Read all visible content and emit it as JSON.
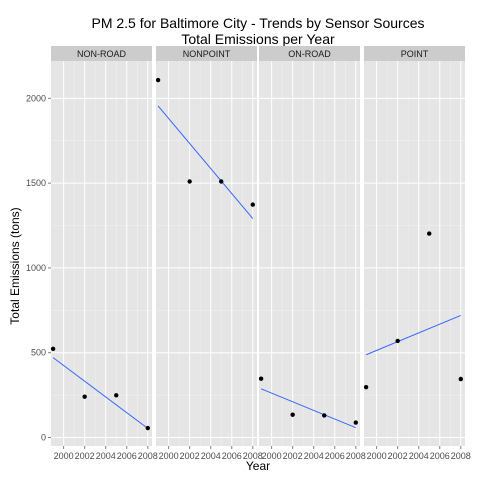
{
  "chart_data": {
    "type": "scatter",
    "title_lines": [
      "PM 2.5 for Baltimore City - Trends by Sensor Sources",
      "Total Emissions per Year"
    ],
    "xlabel": "Year",
    "ylabel": "Total Emissions (tons)",
    "x_ticks": [
      "2000",
      "2002",
      "2004",
      "2006",
      "2008"
    ],
    "y_ticks": [
      "0",
      "500",
      "1000",
      "1500",
      "2000"
    ],
    "xlim": [
      1998.8,
      2008.4
    ],
    "ylim": [
      -50,
      2220
    ],
    "grid": true,
    "trend_line_color": "#3366ff",
    "point_color": "#000000",
    "panel_background": "#e5e5e5",
    "strip_background": "#cccccc",
    "panels": [
      {
        "name": "NON-ROAD",
        "x": [
          1999,
          2002,
          2005,
          2008
        ],
        "y": [
          522.94,
          240.85,
          248.93,
          55.82
        ],
        "trend": {
          "x": [
            1999,
            2008
          ],
          "y": [
            471,
            54
          ]
        }
      },
      {
        "name": "NONPOINT",
        "x": [
          1999,
          2002,
          2005,
          2008
        ],
        "y": [
          2107.63,
          1509.5,
          1509.5,
          1373.21
        ],
        "trend": {
          "x": [
            1999,
            2008
          ],
          "y": [
            1955,
            1291
          ]
        }
      },
      {
        "name": "ON-ROAD",
        "x": [
          1999,
          2002,
          2005,
          2008
        ],
        "y": [
          346.82,
          134.31,
          130.43,
          88.28
        ],
        "trend": {
          "x": [
            1999,
            2008
          ],
          "y": [
            287,
            58
          ]
        }
      },
      {
        "name": "POINT",
        "x": [
          1999,
          2002,
          2005,
          2008
        ],
        "y": [
          296.8,
          569.26,
          1202.49,
          344.98
        ],
        "trend": {
          "x": [
            1999,
            2008
          ],
          "y": [
            488,
            720
          ]
        }
      }
    ]
  }
}
